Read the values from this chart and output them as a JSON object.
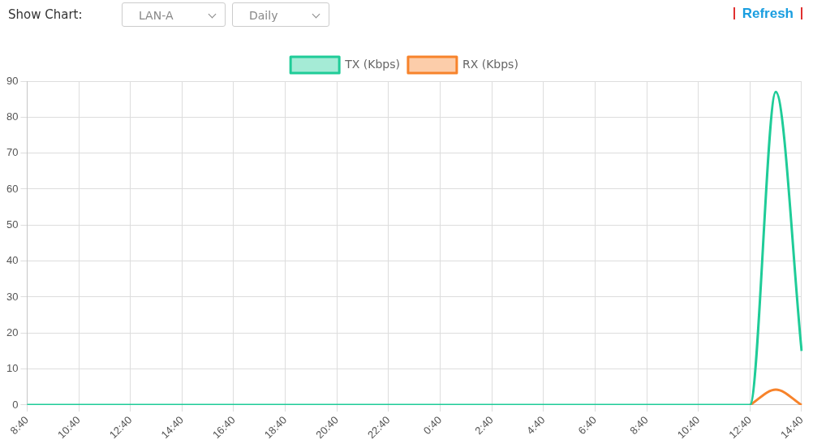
{
  "chart_data": {
    "type": "line",
    "annotations": [
      "Show Chart:",
      "LAN-A",
      "Daily",
      "Refresh"
    ],
    "categories": [
      "8:40",
      null,
      "10:40",
      null,
      "12:40",
      null,
      "14:40",
      null,
      "16:40",
      null,
      "18:40",
      null,
      "20:40",
      null,
      "22:40",
      null,
      "0:40",
      null,
      "2:40",
      null,
      "4:40",
      null,
      "6:40",
      null,
      "8:40",
      null,
      "10:40",
      null,
      "12:40",
      null,
      "14:40"
    ],
    "series": [
      {
        "name": "TX (Kbps)",
        "color": "#1fcc98",
        "values": [
          0,
          0,
          0,
          0,
          0,
          0,
          0,
          0,
          0,
          0,
          0,
          0,
          0,
          0,
          0,
          0,
          0,
          0,
          0,
          0,
          0,
          0,
          0,
          0,
          0,
          0,
          0,
          0,
          0,
          87,
          15
        ]
      },
      {
        "name": "RX (Kbps)",
        "color": "#f7832b",
        "values": [
          null,
          null,
          null,
          null,
          null,
          null,
          null,
          null,
          null,
          null,
          null,
          null,
          null,
          null,
          null,
          null,
          null,
          null,
          null,
          null,
          null,
          null,
          null,
          null,
          null,
          null,
          null,
          null,
          0,
          4.3,
          0
        ]
      }
    ],
    "ylim": [
      0,
      90
    ],
    "yticks": [
      0,
      10,
      20,
      30,
      40,
      50,
      60,
      70,
      80,
      90
    ],
    "grid": true,
    "legend": "top",
    "marker": "none",
    "line_style": "solid"
  }
}
